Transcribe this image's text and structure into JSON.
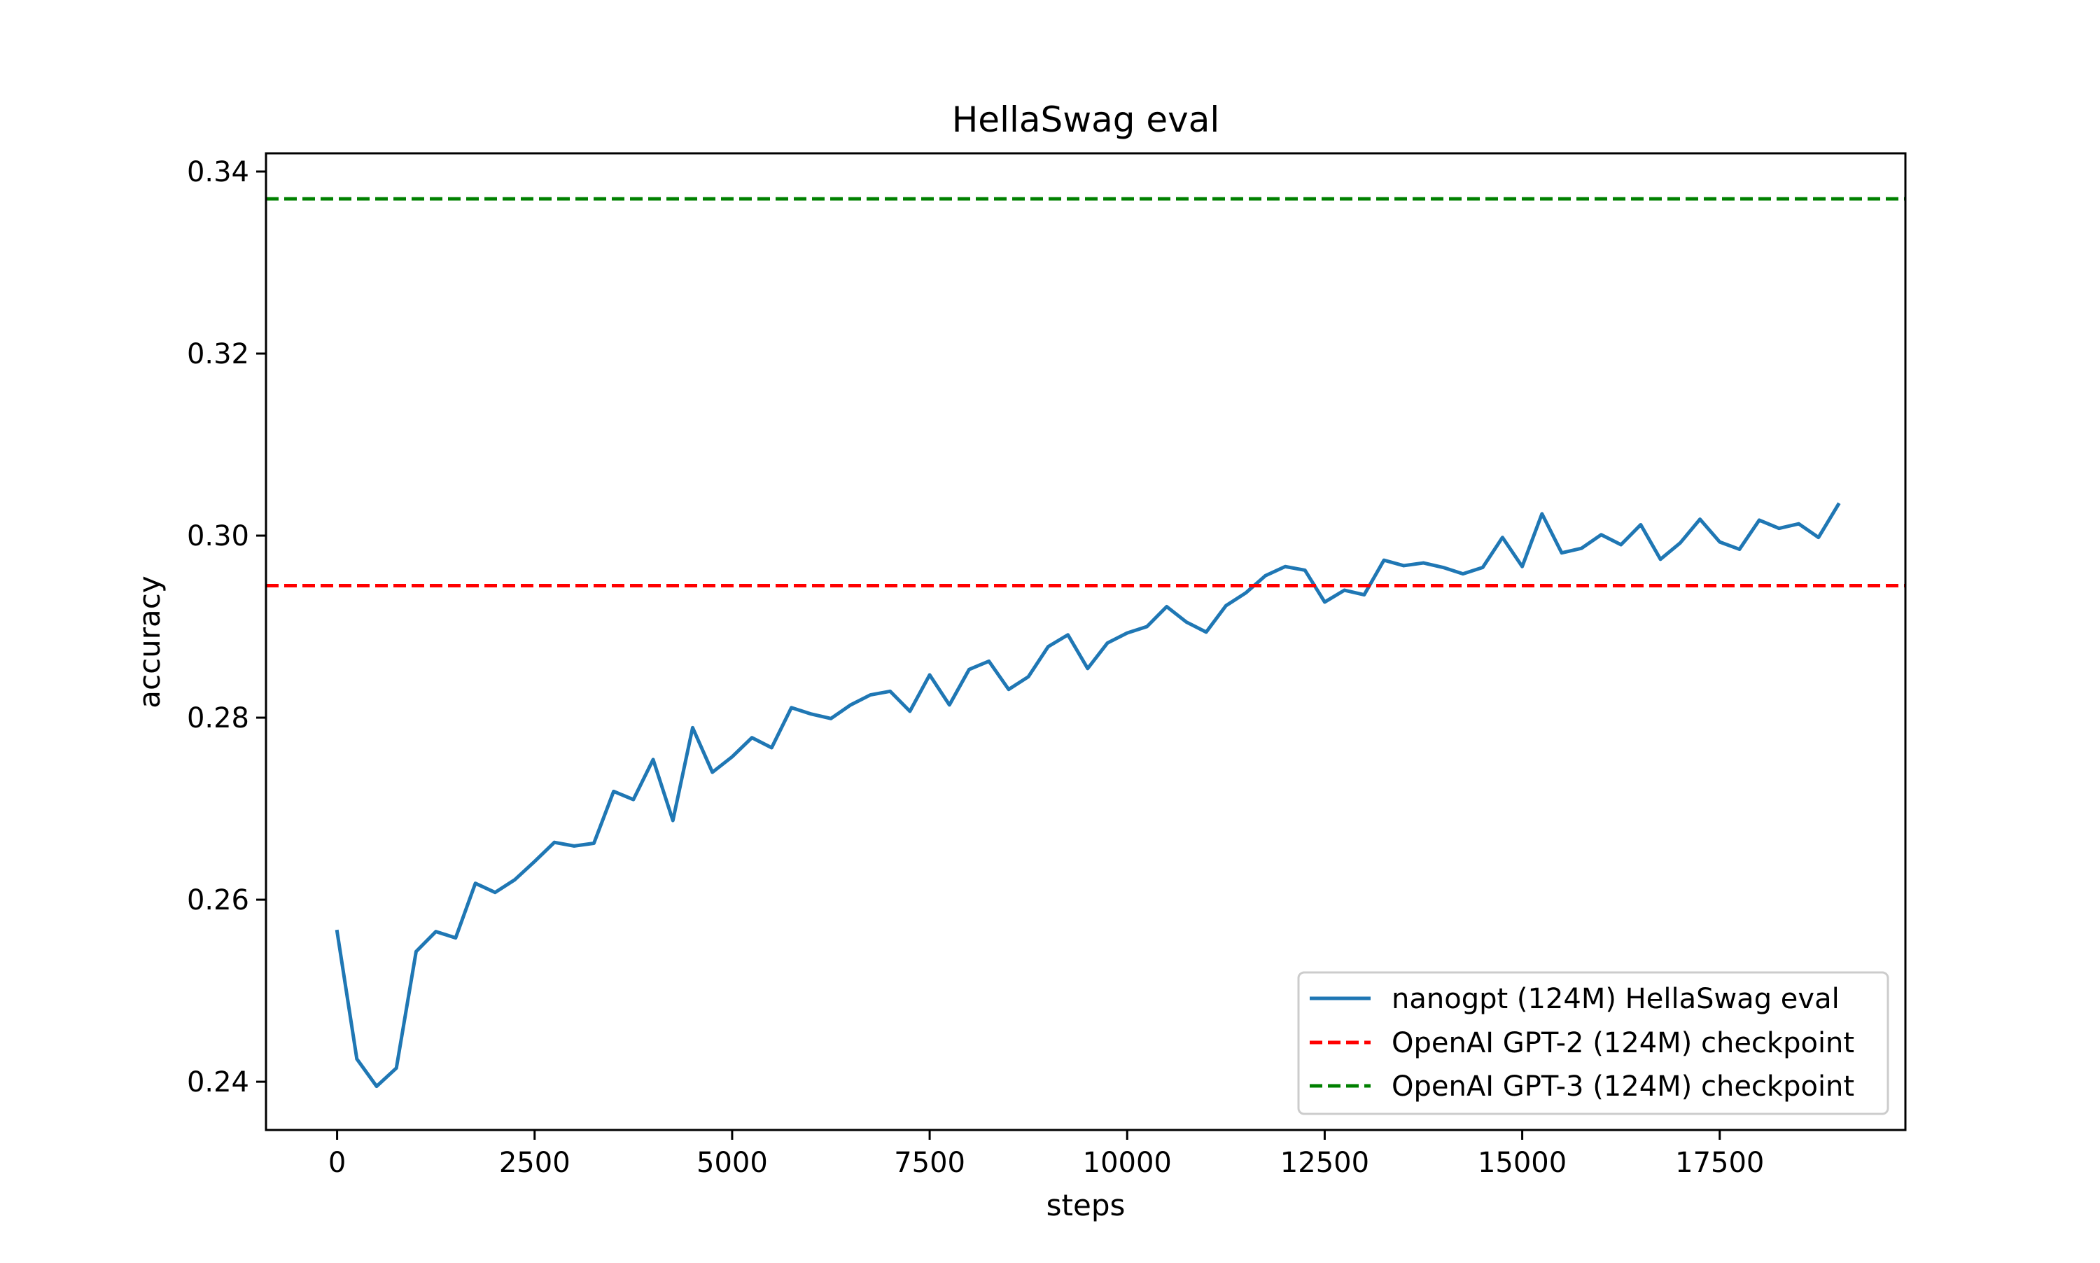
{
  "chart_data": {
    "type": "line",
    "title": "HellaSwag eval",
    "xlabel": "steps",
    "ylabel": "accuracy",
    "xlim": [
      -900,
      19850
    ],
    "ylim": [
      0.2347,
      0.342
    ],
    "x_ticks": [
      0,
      2500,
      5000,
      7500,
      10000,
      12500,
      15000,
      17500
    ],
    "x_tick_labels": [
      "0",
      "2500",
      "5000",
      "7500",
      "10000",
      "12500",
      "15000",
      "17500"
    ],
    "y_ticks": [
      0.24,
      0.26,
      0.28,
      0.3,
      0.32,
      0.34
    ],
    "y_tick_labels": [
      "0.24",
      "0.26",
      "0.28",
      "0.30",
      "0.32",
      "0.34"
    ],
    "grid": false,
    "legend_position": "lower-right",
    "series": [
      {
        "name": "nanogpt (124M) HellaSwag eval",
        "style": "solid",
        "color": "#1f77b4",
        "x": [
          0,
          250,
          500,
          750,
          1000,
          1250,
          1500,
          1750,
          2000,
          2250,
          2500,
          2750,
          3000,
          3250,
          3500,
          3750,
          4000,
          4250,
          4500,
          4750,
          5000,
          5250,
          5500,
          5750,
          6000,
          6250,
          6500,
          6750,
          7000,
          7250,
          7500,
          7750,
          8000,
          8250,
          8500,
          8750,
          9000,
          9250,
          9500,
          9750,
          10000,
          10250,
          10500,
          10750,
          11000,
          11250,
          11500,
          11750,
          12000,
          12250,
          12500,
          12750,
          13000,
          13250,
          13500,
          13750,
          14000,
          14250,
          14500,
          14750,
          15000,
          15250,
          15500,
          15750,
          16000,
          16250,
          16500,
          16750,
          17000,
          17250,
          17500,
          17750,
          18000,
          18250,
          18500,
          18750,
          19000
        ],
        "y": [
          0.2565,
          0.2425,
          0.2395,
          0.2415,
          0.2543,
          0.2565,
          0.2558,
          0.2618,
          0.2608,
          0.2622,
          0.2642,
          0.2663,
          0.2659,
          0.2662,
          0.2719,
          0.271,
          0.2754,
          0.2687,
          0.2789,
          0.274,
          0.2757,
          0.2778,
          0.2767,
          0.2811,
          0.2804,
          0.2799,
          0.2814,
          0.2825,
          0.2829,
          0.2807,
          0.2847,
          0.2814,
          0.2853,
          0.2862,
          0.2831,
          0.2845,
          0.2878,
          0.2891,
          0.2854,
          0.2882,
          0.2893,
          0.29,
          0.2922,
          0.2905,
          0.2894,
          0.2923,
          0.2937,
          0.2956,
          0.2966,
          0.2962,
          0.2927,
          0.294,
          0.2935,
          0.2973,
          0.2967,
          0.297,
          0.2965,
          0.2958,
          0.2965,
          0.2998,
          0.2966,
          0.3024,
          0.2981,
          0.2986,
          0.3001,
          0.299,
          0.3012,
          0.2974,
          0.2992,
          0.3018,
          0.2993,
          0.2985,
          0.3017,
          0.3008,
          0.3013,
          0.2998,
          0.3034
        ]
      },
      {
        "name": "OpenAI GPT-2 (124M) checkpoint",
        "style": "dashed",
        "color": "#ff0000",
        "hline": 0.2945
      },
      {
        "name": "OpenAI GPT-3 (124M) checkpoint",
        "style": "dashed",
        "color": "#008000",
        "hline": 0.337
      }
    ]
  }
}
